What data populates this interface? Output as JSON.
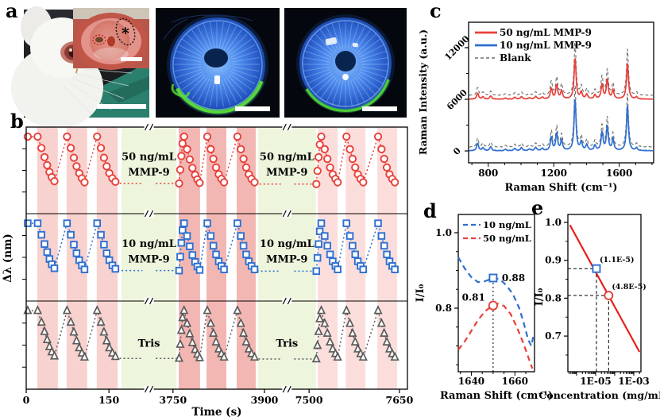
{
  "figure": {
    "panels": {
      "a": "a",
      "b": "b",
      "c": "c",
      "d": "d",
      "e": "e"
    }
  },
  "panel_a": {
    "asterisk": "*"
  },
  "chart_data": [
    {
      "id": "b",
      "type": "line",
      "xlabel": "Time (s)",
      "ylabel": "Δλ (nm)",
      "x_ticks": [
        [
          "0",
          0.0
        ],
        [
          "150",
          0.217
        ],
        [
          "3750",
          0.385
        ],
        [
          "3900",
          0.625
        ],
        [
          "7500",
          0.742
        ],
        [
          "7650",
          0.979
        ]
      ],
      "pink_bands": [
        [
          0.029,
          0.083,
          "#f8d2cf"
        ],
        [
          0.106,
          0.16,
          "#f8d2cf"
        ],
        [
          0.185,
          0.24,
          "#f8d2cf"
        ],
        [
          0.4,
          0.456,
          "#f3b7b3"
        ],
        [
          0.473,
          0.525,
          "#f3b7b3"
        ],
        [
          0.552,
          0.602,
          "#f3b7b3"
        ],
        [
          0.765,
          0.817,
          "#fbdedb"
        ],
        [
          0.838,
          0.89,
          "#fbdedb"
        ],
        [
          0.921,
          0.973,
          "#fbdedb"
        ]
      ],
      "green_bands": [
        [
          0.25,
          0.394
        ],
        [
          0.608,
          0.76
        ]
      ],
      "green_color": "#eef5dd",
      "breaks": [
        0.322,
        0.684
      ],
      "series": [
        {
          "name": "50 ng/mL MMP-9",
          "marker": "circle",
          "color": "#e8403a",
          "label_lines": [
            "50 ng/mL",
            "MMP-9"
          ]
        },
        {
          "name": "10 ng/mL MMP-9",
          "marker": "square",
          "color": "#2e6fd0",
          "label_lines": [
            "10 ng/mL",
            "MMP-9"
          ]
        },
        {
          "name": "Tris",
          "marker": "triangle",
          "color": "#5b5b5b",
          "label_lines": [
            "Tris"
          ]
        }
      ],
      "waveform": [
        [
          0.004,
          1,
          1
        ],
        [
          0.03,
          1,
          1
        ],
        [
          0.04,
          0.8,
          1
        ],
        [
          0.048,
          0.64,
          1
        ],
        [
          0.055,
          0.5,
          1
        ],
        [
          0.061,
          0.38,
          1
        ],
        [
          0.067,
          0.29,
          1
        ],
        [
          0.074,
          0.22,
          1
        ],
        [
          0.107,
          1,
          1
        ],
        [
          0.117,
          0.8,
          1
        ],
        [
          0.125,
          0.63,
          1
        ],
        [
          0.132,
          0.48,
          1
        ],
        [
          0.139,
          0.36,
          1
        ],
        [
          0.146,
          0.27,
          1
        ],
        [
          0.153,
          0.2,
          1
        ],
        [
          0.186,
          1,
          1
        ],
        [
          0.196,
          0.8,
          1
        ],
        [
          0.204,
          0.63,
          1
        ],
        [
          0.211,
          0.48,
          1
        ],
        [
          0.218,
          0.36,
          1
        ],
        [
          0.226,
          0.27,
          1
        ],
        [
          0.234,
          0.21,
          1
        ],
        [
          0.248,
          0.18,
          0
        ],
        [
          0.305,
          0.18,
          0
        ],
        null,
        [
          0.34,
          0.18,
          0
        ],
        [
          0.398,
          0.18,
          0
        ],
        [
          0.401,
          0.18,
          1
        ],
        [
          0.404,
          0.42,
          1
        ],
        [
          0.407,
          0.66,
          1
        ],
        [
          0.41,
          0.88,
          1
        ],
        [
          0.414,
          1,
          1
        ],
        [
          0.422,
          0.78,
          1
        ],
        [
          0.429,
          0.6,
          1
        ],
        [
          0.436,
          0.45,
          1
        ],
        [
          0.443,
          0.33,
          1
        ],
        [
          0.449,
          0.25,
          1
        ],
        [
          0.455,
          0.19,
          1
        ],
        [
          0.475,
          1,
          1
        ],
        [
          0.484,
          0.78,
          1
        ],
        [
          0.491,
          0.61,
          1
        ],
        [
          0.498,
          0.46,
          1
        ],
        [
          0.505,
          0.34,
          1
        ],
        [
          0.512,
          0.26,
          1
        ],
        [
          0.519,
          0.2,
          1
        ],
        [
          0.554,
          1,
          1
        ],
        [
          0.563,
          0.78,
          1
        ],
        [
          0.57,
          0.61,
          1
        ],
        [
          0.577,
          0.46,
          1
        ],
        [
          0.584,
          0.34,
          1
        ],
        [
          0.591,
          0.26,
          1
        ],
        [
          0.599,
          0.2,
          1
        ],
        [
          0.612,
          0.17,
          0
        ],
        [
          0.668,
          0.17,
          0
        ],
        null,
        [
          0.703,
          0.17,
          0
        ],
        [
          0.757,
          0.17,
          0
        ],
        [
          0.761,
          0.17,
          1
        ],
        [
          0.764,
          0.4,
          1
        ],
        [
          0.767,
          0.64,
          1
        ],
        [
          0.77,
          0.86,
          1
        ],
        [
          0.774,
          1,
          1
        ],
        [
          0.783,
          0.78,
          1
        ],
        [
          0.79,
          0.61,
          1
        ],
        [
          0.797,
          0.46,
          1
        ],
        [
          0.804,
          0.34,
          1
        ],
        [
          0.811,
          0.26,
          1
        ],
        [
          0.817,
          0.2,
          1
        ],
        [
          0.84,
          1,
          1
        ],
        [
          0.849,
          0.78,
          1
        ],
        [
          0.856,
          0.61,
          1
        ],
        [
          0.863,
          0.46,
          1
        ],
        [
          0.87,
          0.34,
          1
        ],
        [
          0.877,
          0.26,
          1
        ],
        [
          0.884,
          0.2,
          1
        ],
        [
          0.923,
          1,
          1
        ],
        [
          0.932,
          0.78,
          1
        ],
        [
          0.939,
          0.61,
          1
        ],
        [
          0.946,
          0.46,
          1
        ],
        [
          0.953,
          0.34,
          1
        ],
        [
          0.96,
          0.26,
          1
        ],
        [
          0.967,
          0.2,
          1
        ]
      ]
    },
    {
      "id": "c",
      "type": "line",
      "xlabel": "Raman Shift (cm⁻¹)",
      "ylabel": "Raman Intensity (a.u.)",
      "x_range": [
        680,
        1810
      ],
      "x_ticks": [
        800,
        1200,
        1600
      ],
      "x_minor_step": 100,
      "y_ticks": [
        0,
        6000,
        12000
      ],
      "legend": [
        [
          "50 ng/mL MMP-9",
          "#e8403a",
          "solid"
        ],
        [
          "10 ng/mL MMP-9",
          "#2e6fd0",
          "solid"
        ],
        [
          "Blank",
          "#6e6e6e",
          "dashed"
        ]
      ],
      "peaks": [
        [
          735,
          700
        ],
        [
          768,
          280
        ],
        [
          815,
          380
        ],
        [
          905,
          140
        ],
        [
          962,
          220
        ],
        [
          1003,
          300
        ],
        [
          1052,
          160
        ],
        [
          1090,
          320
        ],
        [
          1130,
          220
        ],
        [
          1185,
          1250
        ],
        [
          1218,
          1600
        ],
        [
          1248,
          950
        ],
        [
          1330,
          4800
        ],
        [
          1368,
          800
        ],
        [
          1402,
          550
        ],
        [
          1452,
          480
        ],
        [
          1495,
          1700
        ],
        [
          1527,
          2250
        ],
        [
          1562,
          1000
        ],
        [
          1650,
          4200
        ],
        [
          1705,
          250
        ]
      ],
      "traces": [
        {
          "name": "Blank (vs 10 ng/mL)",
          "base": 430,
          "scale": 1.5,
          "dashed": true,
          "color": "#6e6e6e"
        },
        {
          "name": "Blank (vs 50 ng/mL)",
          "base": 6450,
          "scale": 1.3,
          "dashed": true,
          "color": "#6e6e6e"
        },
        {
          "name": "10 ng/mL MMP-9",
          "base": 0,
          "scale": 1.25,
          "dashed": false,
          "color": "#2e6fd0"
        },
        {
          "name": "50 ng/mL MMP-9",
          "base": 6000,
          "scale": 1.0,
          "dashed": false,
          "color": "#e8403a"
        }
      ]
    },
    {
      "id": "d",
      "type": "line",
      "xlabel": "Raman Shift (cm⁻¹)",
      "ylabel": "I/I₀",
      "x_range": [
        1634,
        1669
      ],
      "x_ticks": [
        1640,
        1660
      ],
      "y_range": [
        0.632,
        1.048
      ],
      "y_ticks": [
        1.0,
        0.8
      ],
      "legend": [
        [
          "10 ng/mL",
          "#2e6fd0"
        ],
        [
          "50 ng/mL",
          "#e8403a"
        ]
      ],
      "guide_x": 1650,
      "series": [
        {
          "name": "10 ng/mL",
          "color": "#2e6fd0",
          "points": [
            [
              1634,
              0.935
            ],
            [
              1637,
              0.905
            ],
            [
              1640,
              0.882
            ],
            [
              1643,
              0.869
            ],
            [
              1646,
              0.871
            ],
            [
              1650,
              0.88
            ],
            [
              1653,
              0.877
            ],
            [
              1656,
              0.861
            ],
            [
              1659,
              0.838
            ],
            [
              1662,
              0.8
            ],
            [
              1664,
              0.762
            ],
            [
              1666,
              0.718
            ],
            [
              1667.5,
              0.7
            ],
            [
              1668.5,
              0.726
            ]
          ],
          "marker": {
            "x": 1650,
            "y": 0.88,
            "shape": "square",
            "label": "0.88"
          }
        },
        {
          "name": "50 ng/mL",
          "color": "#e8403a",
          "points": [
            [
              1634,
              0.69
            ],
            [
              1637,
              0.712
            ],
            [
              1640,
              0.74
            ],
            [
              1643,
              0.768
            ],
            [
              1646,
              0.79
            ],
            [
              1649,
              0.804
            ],
            [
              1652,
              0.812
            ],
            [
              1655,
              0.806
            ],
            [
              1658,
              0.785
            ],
            [
              1661,
              0.748
            ],
            [
              1664,
              0.705
            ],
            [
              1666,
              0.672
            ],
            [
              1668,
              0.64
            ]
          ],
          "marker": {
            "x": 1650,
            "y": 0.807,
            "shape": "circle",
            "label": "0.81"
          }
        }
      ]
    },
    {
      "id": "e",
      "type": "scatter",
      "xlabel": "Concentration (mg/mL)",
      "ylabel": "I/I₀",
      "x_log_range": [
        -6.46,
        -2.625
      ],
      "x_ticks": [
        [
          "1E-05",
          -5
        ],
        [
          "1E-03",
          -3
        ]
      ],
      "y_range": [
        0.606,
        1.021
      ],
      "y_ticks": [
        1.0,
        0.9,
        0.8,
        0.7
      ],
      "fit_line": {
        "color": "#e8211d",
        "from": [
          -6.35,
          0.993
        ],
        "to": [
          -2.7,
          0.658
        ]
      },
      "points": [
        {
          "logx": -4.96,
          "y": 0.878,
          "shape": "square",
          "color": "#2e6fd0",
          "label": "(1.1E-5)"
        },
        {
          "logx": -4.32,
          "y": 0.807,
          "shape": "circle",
          "color": "#e8403a",
          "label": "(4.8E-5)"
        }
      ]
    }
  ]
}
